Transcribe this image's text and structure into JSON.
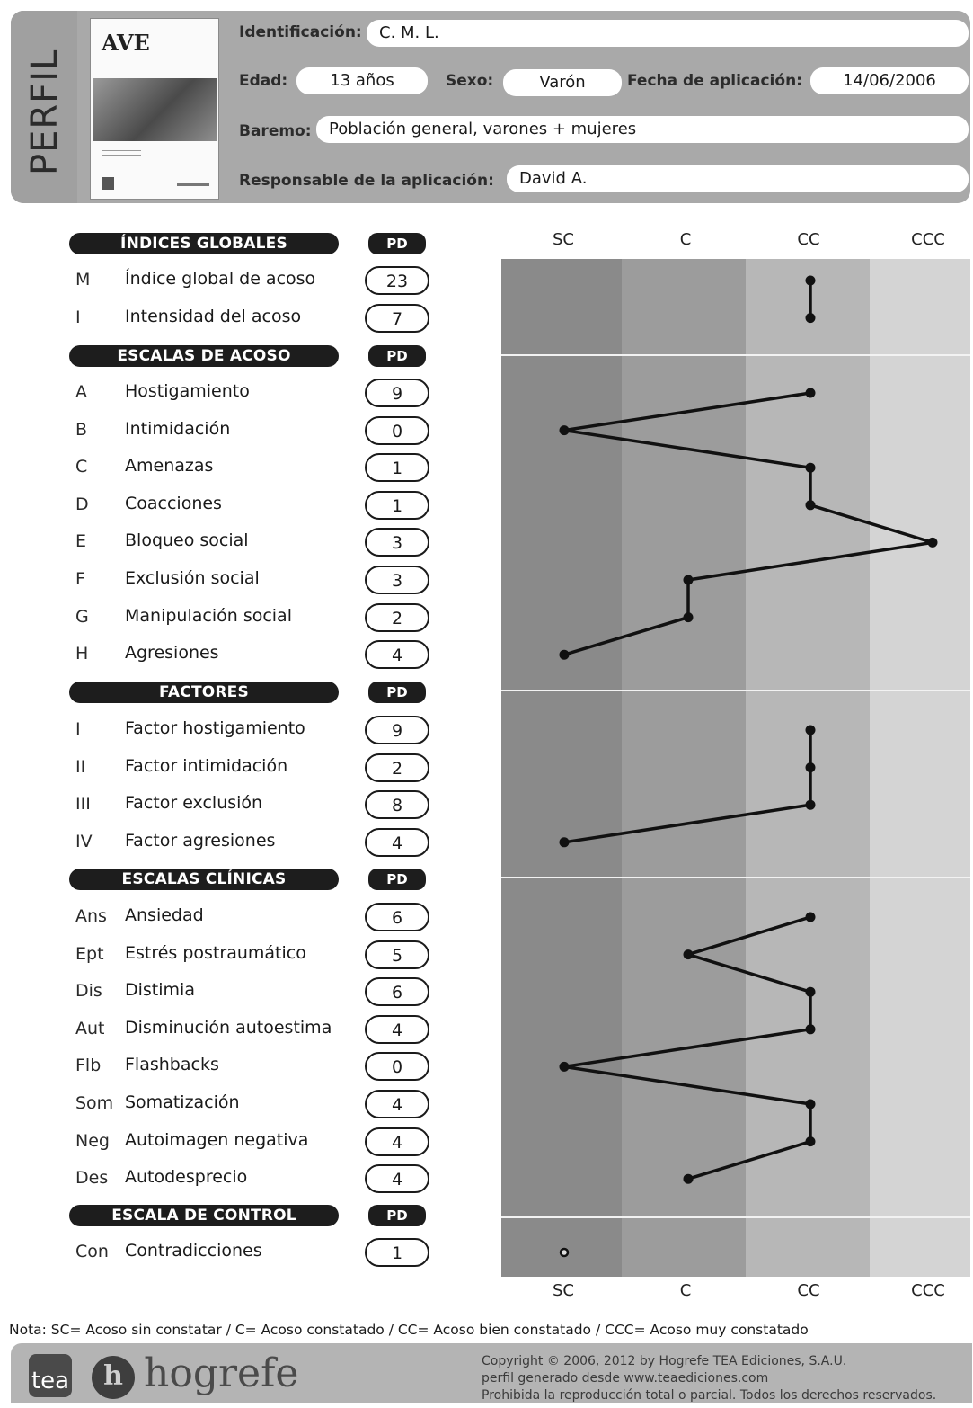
{
  "header": {
    "perfil": "PERFIL",
    "cover_title": "AVE",
    "identificacion_label": "Identificación:",
    "identificacion_value": "C. M. L.",
    "edad_label": "Edad:",
    "edad_value": "13 años",
    "sexo_label": "Sexo:",
    "sexo_value": "Varón",
    "fecha_label": "Fecha de aplicación:",
    "fecha_value": "14/06/2006",
    "baremo_label": "Baremo:",
    "baremo_value": "Población general, varones + mujeres",
    "responsable_label": "Responsable de la aplicación:",
    "responsable_value": "David A."
  },
  "sections": [
    {
      "title": "ÍNDICES GLOBALES",
      "pd_label": "PD",
      "rows": [
        {
          "code": "M",
          "label": "Índice global de acoso",
          "pd": "23"
        },
        {
          "code": "I",
          "label": "Intensidad del acoso",
          "pd": "7"
        }
      ]
    },
    {
      "title": "ESCALAS DE ACOSO",
      "pd_label": "PD",
      "rows": [
        {
          "code": "A",
          "label": "Hostigamiento",
          "pd": "9"
        },
        {
          "code": "B",
          "label": "Intimidación",
          "pd": "0"
        },
        {
          "code": "C",
          "label": "Amenazas",
          "pd": "1"
        },
        {
          "code": "D",
          "label": "Coacciones",
          "pd": "1"
        },
        {
          "code": "E",
          "label": "Bloqueo social",
          "pd": "3"
        },
        {
          "code": "F",
          "label": "Exclusión social",
          "pd": "3"
        },
        {
          "code": "G",
          "label": "Manipulación social",
          "pd": "2"
        },
        {
          "code": "H",
          "label": "Agresiones",
          "pd": "4"
        }
      ]
    },
    {
      "title": "FACTORES",
      "pd_label": "PD",
      "rows": [
        {
          "code": "I",
          "label": "Factor hostigamiento",
          "pd": "9"
        },
        {
          "code": "II",
          "label": "Factor intimidación",
          "pd": "2"
        },
        {
          "code": "III",
          "label": "Factor exclusión",
          "pd": "8"
        },
        {
          "code": "IV",
          "label": "Factor agresiones",
          "pd": "4"
        }
      ]
    },
    {
      "title": "ESCALAS CLÍNICAS",
      "pd_label": "PD",
      "rows": [
        {
          "code": "Ans",
          "label": "Ansiedad",
          "pd": "6"
        },
        {
          "code": "Ept",
          "label": "Estrés postraumático",
          "pd": "5"
        },
        {
          "code": "Dis",
          "label": "Distimia",
          "pd": "6"
        },
        {
          "code": "Aut",
          "label": "Disminución autoestima",
          "pd": "4"
        },
        {
          "code": "Flb",
          "label": "Flashbacks",
          "pd": "0"
        },
        {
          "code": "Som",
          "label": "Somatización",
          "pd": "4"
        },
        {
          "code": "Neg",
          "label": "Autoimagen negativa",
          "pd": "4"
        },
        {
          "code": "Des",
          "label": "Autodesprecio",
          "pd": "4"
        }
      ]
    },
    {
      "title": "ESCALA DE CONTROL",
      "pd_label": "PD",
      "rows": [
        {
          "code": "Con",
          "label": "Contradicciones",
          "pd": "1"
        }
      ]
    }
  ],
  "chart_data": {
    "type": "line",
    "categories_axis": [
      "SC",
      "C",
      "CC",
      "CCC"
    ],
    "groups": [
      {
        "scales": [
          "M",
          "I"
        ],
        "levels": [
          "CC",
          "CC"
        ]
      },
      {
        "scales": [
          "A",
          "B",
          "C",
          "D",
          "E",
          "F",
          "G",
          "H"
        ],
        "levels": [
          "CC",
          "SC",
          "CC",
          "CC",
          "CCC",
          "C",
          "C",
          "SC"
        ]
      },
      {
        "scales": [
          "I",
          "II",
          "III",
          "IV"
        ],
        "levels": [
          "CC",
          "CC",
          "CC",
          "SC"
        ]
      },
      {
        "scales": [
          "Ans",
          "Ept",
          "Dis",
          "Aut",
          "Flb",
          "Som",
          "Neg",
          "Des"
        ],
        "levels": [
          "CC",
          "C",
          "CC",
          "CC",
          "SC",
          "CC",
          "CC",
          "C"
        ]
      },
      {
        "scales": [
          "Con"
        ],
        "levels": [
          "SC"
        ],
        "marker": "open"
      }
    ],
    "band_colors": [
      "#8a8a8a",
      "#9c9c9c",
      "#b7b7b7",
      "#d4d4d4"
    ]
  },
  "footer": {
    "nota": "Nota: SC= Acoso sin constatar / C= Acoso constatado / CC= Acoso bien constatado / CCC= Acoso muy constatado",
    "tea": "tea",
    "hogrefe": "hogrefe",
    "copyright": "Copyright © 2006, 2012 by Hogrefe TEA Ediciones, S.A.U.",
    "generated": "perfil generado desde www.teaediciones.com",
    "rights": "Prohibida la reproducción total o parcial. Todos los derechos reservados."
  }
}
